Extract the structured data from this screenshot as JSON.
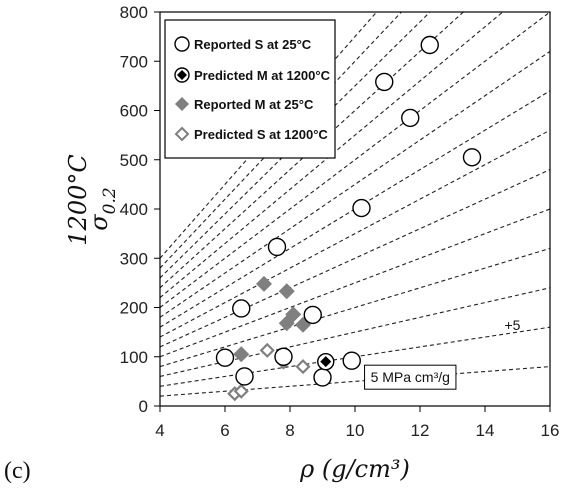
{
  "chart_data": {
    "type": "scatter",
    "panel_label": "(c)",
    "xlabel": "ρ (g/cm³)",
    "ylabel_main": "σ",
    "ylabel_sub": "0.2",
    "ylabel_sup": "1200°C",
    "xlim": [
      4,
      16
    ],
    "ylim": [
      0,
      800
    ],
    "xticks": [
      "4",
      "6",
      "8",
      "10",
      "12",
      "14",
      "16"
    ],
    "yticks": [
      "0",
      "100",
      "200",
      "300",
      "400",
      "500",
      "600",
      "700",
      "800"
    ],
    "grid": false,
    "legend_position": "top-left",
    "reference_lines": {
      "style": "dashed",
      "slopes": [
        5,
        10,
        15,
        20,
        25,
        30,
        35,
        40,
        45,
        50,
        55,
        60,
        65,
        70,
        75
      ],
      "annotations": [
        {
          "text": "+5",
          "slope": 10
        },
        {
          "text": "5 MPa cm³/g",
          "slope": 5
        }
      ]
    },
    "series": [
      {
        "name": "Reported S at 25°C",
        "marker": "open-circle",
        "points": [
          {
            "x": 6.0,
            "y": 98
          },
          {
            "x": 6.5,
            "y": 198
          },
          {
            "x": 6.6,
            "y": 60
          },
          {
            "x": 7.6,
            "y": 323
          },
          {
            "x": 7.8,
            "y": 100
          },
          {
            "x": 8.7,
            "y": 185
          },
          {
            "x": 9.0,
            "y": 58
          },
          {
            "x": 9.9,
            "y": 92
          },
          {
            "x": 10.2,
            "y": 402
          },
          {
            "x": 10.9,
            "y": 658
          },
          {
            "x": 11.7,
            "y": 585
          },
          {
            "x": 12.3,
            "y": 733
          },
          {
            "x": 13.6,
            "y": 505
          }
        ]
      },
      {
        "name": "Predicted M at 1200°C",
        "marker": "black-diamond-in-circle",
        "points": [
          {
            "x": 9.1,
            "y": 90
          }
        ]
      },
      {
        "name": "Reported M at 25°C",
        "marker": "filled-diamond",
        "color": "#7f7f7f",
        "points": [
          {
            "x": 6.5,
            "y": 105
          },
          {
            "x": 7.2,
            "y": 248
          },
          {
            "x": 7.9,
            "y": 233
          },
          {
            "x": 7.9,
            "y": 168
          },
          {
            "x": 8.1,
            "y": 186
          },
          {
            "x": 8.4,
            "y": 165
          },
          {
            "x": 7.8,
            "y": 90
          }
        ]
      },
      {
        "name": "Predicted S at 1200°C",
        "marker": "open-diamond",
        "color": "#7f7f7f",
        "points": [
          {
            "x": 6.3,
            "y": 25
          },
          {
            "x": 6.5,
            "y": 30
          },
          {
            "x": 7.3,
            "y": 113
          },
          {
            "x": 8.4,
            "y": 80
          }
        ]
      }
    ]
  }
}
